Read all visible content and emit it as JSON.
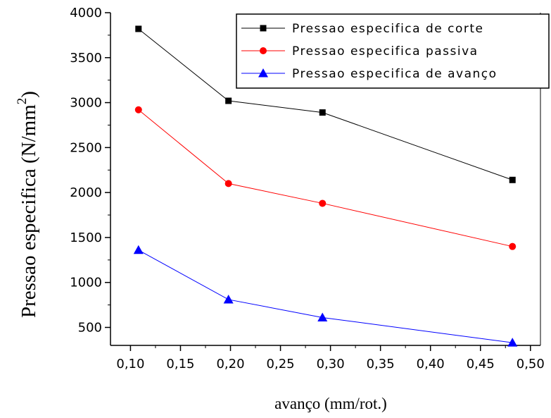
{
  "chart_data": {
    "type": "line",
    "xlabel": "avanço (mm/rot.)",
    "ylabel": "Pressao especifica (N/mm",
    "ylabel_sup": "2",
    "ylabel_close": ")",
    "xlim": [
      0.08,
      0.51
    ],
    "ylim": [
      300,
      4000
    ],
    "x_ticks": [
      0.1,
      0.15,
      0.2,
      0.25,
      0.3,
      0.35,
      0.4,
      0.45,
      0.5
    ],
    "x_tick_labels": [
      "0,10",
      "0,15",
      "0,20",
      "0,25",
      "0,30",
      "0,35",
      "0,40",
      "0,45",
      "0,50"
    ],
    "y_ticks": [
      500,
      1000,
      1500,
      2000,
      2500,
      3000,
      3500,
      4000
    ],
    "y_tick_labels": [
      "500",
      "1000",
      "1500",
      "2000",
      "2500",
      "3000",
      "3500",
      "4000"
    ],
    "grid": false,
    "legend_position": "top-right",
    "series": [
      {
        "name": "Pressao especifica de corte",
        "color": "#000000",
        "marker": "square",
        "x": [
          0.108,
          0.198,
          0.292,
          0.482
        ],
        "y": [
          3820,
          3020,
          2890,
          2140
        ]
      },
      {
        "name": "Pressao especifica passiva",
        "color": "#ff0000",
        "marker": "circle",
        "x": [
          0.108,
          0.198,
          0.292,
          0.482
        ],
        "y": [
          2920,
          2100,
          1880,
          1400
        ]
      },
      {
        "name": "Pressao especifica de avanço",
        "color": "#0000ff",
        "marker": "triangle",
        "x": [
          0.108,
          0.198,
          0.292,
          0.482
        ],
        "y": [
          1360,
          810,
          610,
          330
        ]
      }
    ]
  }
}
